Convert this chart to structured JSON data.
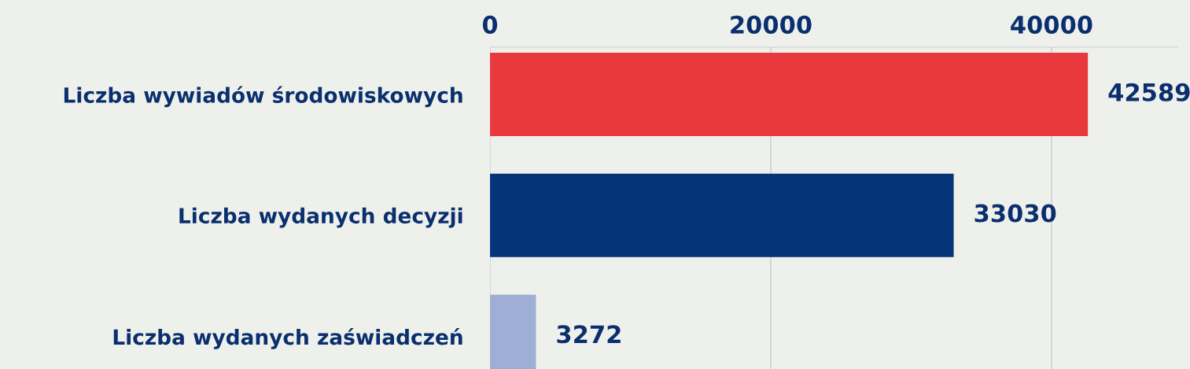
{
  "chart_data": {
    "type": "bar",
    "orientation": "horizontal",
    "categories": [
      "Liczba wywiadów środowiskowych",
      "Liczba wydanych decyzji",
      "Liczba wydanych zaświadczeń"
    ],
    "values": [
      42589,
      33030,
      3272
    ],
    "colors": [
      "#e83a3d",
      "#063479",
      "#9eaed4"
    ],
    "xlim": [
      0,
      49000
    ],
    "xticks": [
      0,
      20000,
      40000
    ],
    "grid": "x",
    "data_labels": true
  }
}
